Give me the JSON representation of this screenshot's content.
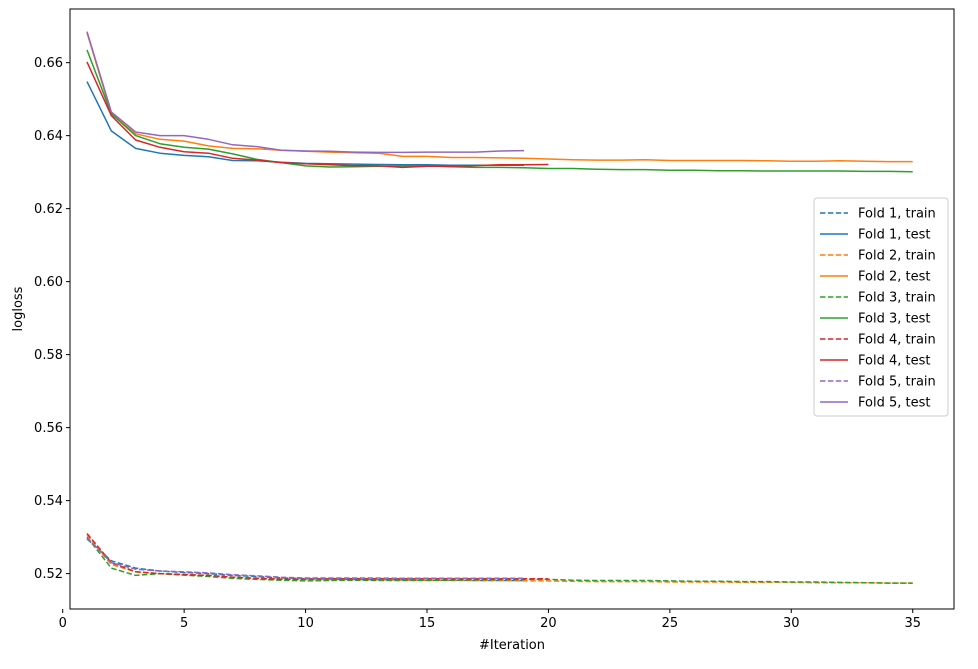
{
  "chart_data": {
    "type": "line",
    "title": "",
    "xlabel": "#Iteration",
    "ylabel": "logloss",
    "xlim": [
      0.3,
      36.7
    ],
    "ylim": [
      0.5103,
      0.6747
    ],
    "x_ticks": [
      0,
      5,
      10,
      15,
      20,
      25,
      30,
      35
    ],
    "y_ticks": [
      0.52,
      0.54,
      0.56,
      0.58,
      0.6,
      0.62,
      0.64,
      0.66
    ],
    "x_tick_labels": [
      "0",
      "5",
      "10",
      "15",
      "20",
      "25",
      "30",
      "35"
    ],
    "y_tick_labels": [
      "0.52",
      "0.54",
      "0.56",
      "0.58",
      "0.60",
      "0.62",
      "0.64",
      "0.66"
    ],
    "grid": false,
    "legend_position": "center-right",
    "series": [
      {
        "name": "Fold 1, train",
        "color": "#1f77b4",
        "dashed": true,
        "x": [
          1,
          2,
          3,
          4,
          5,
          6,
          7,
          8,
          9,
          10,
          11,
          12,
          13,
          14,
          15,
          16,
          17,
          18,
          19
        ],
        "y": [
          0.5295,
          0.5235,
          0.5215,
          0.5207,
          0.5203,
          0.52,
          0.5195,
          0.5192,
          0.5188,
          0.5186,
          0.5185,
          0.5184,
          0.5183,
          0.5183,
          0.5182,
          0.5182,
          0.5181,
          0.5181,
          0.5181
        ]
      },
      {
        "name": "Fold 1, test",
        "color": "#1f77b4",
        "dashed": false,
        "x": [
          1,
          2,
          3,
          4,
          5,
          6,
          7,
          8,
          9,
          10,
          11,
          12,
          13,
          14,
          15,
          16,
          17,
          18,
          19
        ],
        "y": [
          0.6548,
          0.6413,
          0.6365,
          0.6352,
          0.6346,
          0.6342,
          0.6332,
          0.6331,
          0.6327,
          0.6324,
          0.6323,
          0.6322,
          0.6321,
          0.632,
          0.632,
          0.6319,
          0.6319,
          0.6319,
          0.6319
        ]
      },
      {
        "name": "Fold 2, train",
        "color": "#ff7f0e",
        "dashed": true,
        "x": [
          1,
          2,
          3,
          4,
          5,
          6,
          7,
          8,
          9,
          10,
          11,
          12,
          13,
          14,
          15,
          16,
          17,
          18,
          19,
          20,
          21,
          22,
          23,
          24,
          25,
          26,
          27,
          28,
          29,
          30,
          31,
          32,
          33,
          34,
          35
        ],
        "y": [
          0.5305,
          0.5225,
          0.5205,
          0.52,
          0.5198,
          0.5195,
          0.519,
          0.5187,
          0.5185,
          0.5183,
          0.5183,
          0.5183,
          0.5183,
          0.5182,
          0.5182,
          0.5181,
          0.5181,
          0.5181,
          0.518,
          0.518,
          0.5179,
          0.5178,
          0.5178,
          0.5178,
          0.5177,
          0.5177,
          0.5177,
          0.5176,
          0.5176,
          0.5176,
          0.5175,
          0.5175,
          0.5175,
          0.5174,
          0.5174
        ]
      },
      {
        "name": "Fold 2, test",
        "color": "#ff7f0e",
        "dashed": false,
        "x": [
          1,
          2,
          3,
          4,
          5,
          6,
          7,
          8,
          9,
          10,
          11,
          12,
          13,
          14,
          15,
          16,
          17,
          18,
          19,
          20,
          21,
          22,
          23,
          24,
          25,
          26,
          27,
          28,
          29,
          30,
          31,
          32,
          33,
          34,
          35
        ],
        "y": [
          0.6682,
          0.646,
          0.6405,
          0.639,
          0.6385,
          0.6372,
          0.6365,
          0.6364,
          0.636,
          0.6357,
          0.6355,
          0.6353,
          0.6352,
          0.6343,
          0.6343,
          0.634,
          0.634,
          0.6339,
          0.6338,
          0.6336,
          0.6334,
          0.6333,
          0.6333,
          0.6334,
          0.6332,
          0.6332,
          0.6332,
          0.6332,
          0.6331,
          0.633,
          0.633,
          0.6331,
          0.633,
          0.6329,
          0.6329
        ]
      },
      {
        "name": "Fold 3, train",
        "color": "#2ca02c",
        "dashed": true,
        "x": [
          1,
          2,
          3,
          4,
          5,
          6,
          7,
          8,
          9,
          10,
          11,
          12,
          13,
          14,
          15,
          16,
          17,
          18,
          19,
          20,
          21,
          22,
          23,
          24,
          25,
          26,
          27,
          28,
          29,
          30,
          31,
          32,
          33,
          34,
          35
        ],
        "y": [
          0.53,
          0.5215,
          0.5195,
          0.52,
          0.5196,
          0.5192,
          0.5187,
          0.5184,
          0.5182,
          0.518,
          0.5181,
          0.5182,
          0.5181,
          0.5181,
          0.5181,
          0.5182,
          0.5183,
          0.5183,
          0.5184,
          0.5184,
          0.5182,
          0.5181,
          0.5181,
          0.5181,
          0.518,
          0.5179,
          0.5179,
          0.5178,
          0.5178,
          0.5177,
          0.5177,
          0.5176,
          0.5175,
          0.5174,
          0.5174
        ]
      },
      {
        "name": "Fold 3, test",
        "color": "#2ca02c",
        "dashed": false,
        "x": [
          1,
          2,
          3,
          4,
          5,
          6,
          7,
          8,
          9,
          10,
          11,
          12,
          13,
          14,
          15,
          16,
          17,
          18,
          19,
          20,
          21,
          22,
          23,
          24,
          25,
          26,
          27,
          28,
          29,
          30,
          31,
          32,
          33,
          34,
          35
        ],
        "y": [
          0.6635,
          0.646,
          0.64,
          0.6378,
          0.6368,
          0.6363,
          0.635,
          0.6335,
          0.6326,
          0.6317,
          0.6314,
          0.6315,
          0.6316,
          0.6317,
          0.6317,
          0.6315,
          0.6313,
          0.6313,
          0.6312,
          0.631,
          0.631,
          0.6308,
          0.6307,
          0.6307,
          0.6305,
          0.6305,
          0.6304,
          0.6304,
          0.6303,
          0.6303,
          0.6303,
          0.6303,
          0.6302,
          0.6302,
          0.6301
        ]
      },
      {
        "name": "Fold 4, train",
        "color": "#d62728",
        "dashed": true,
        "x": [
          1,
          2,
          3,
          4,
          5,
          6,
          7,
          8,
          9,
          10,
          11,
          12,
          13,
          14,
          15,
          16,
          17,
          18,
          19,
          20
        ],
        "y": [
          0.531,
          0.523,
          0.5205,
          0.52,
          0.5197,
          0.5195,
          0.519,
          0.5187,
          0.5185,
          0.5185,
          0.5186,
          0.5186,
          0.5186,
          0.5186,
          0.5186,
          0.5186,
          0.5186,
          0.5186,
          0.5186,
          0.5186
        ]
      },
      {
        "name": "Fold 4, test",
        "color": "#d62728",
        "dashed": false,
        "x": [
          1,
          2,
          3,
          4,
          5,
          6,
          7,
          8,
          9,
          10,
          11,
          12,
          13,
          14,
          15,
          16,
          17,
          18,
          19,
          20
        ],
        "y": [
          0.6602,
          0.6455,
          0.6388,
          0.6368,
          0.6356,
          0.6352,
          0.6338,
          0.6333,
          0.6326,
          0.6323,
          0.632,
          0.6318,
          0.6317,
          0.6313,
          0.6316,
          0.6316,
          0.6318,
          0.632,
          0.632,
          0.6321
        ]
      },
      {
        "name": "Fold 5, train",
        "color": "#9467bd",
        "dashed": true,
        "x": [
          1,
          2,
          3,
          4,
          5,
          6,
          7,
          8,
          9,
          10,
          11,
          12,
          13,
          14,
          15,
          16,
          17,
          18,
          19
        ],
        "y": [
          0.5298,
          0.523,
          0.5212,
          0.5207,
          0.5205,
          0.5202,
          0.5197,
          0.5194,
          0.519,
          0.5188,
          0.5188,
          0.5188,
          0.5188,
          0.5187,
          0.5187,
          0.5187,
          0.5187,
          0.5187,
          0.5187
        ]
      },
      {
        "name": "Fold 5, test",
        "color": "#9467bd",
        "dashed": false,
        "x": [
          1,
          2,
          3,
          4,
          5,
          6,
          7,
          8,
          9,
          10,
          11,
          12,
          13,
          14,
          15,
          16,
          17,
          18,
          19
        ],
        "y": [
          0.6685,
          0.6465,
          0.641,
          0.64,
          0.64,
          0.639,
          0.6375,
          0.637,
          0.636,
          0.6358,
          0.6357,
          0.6355,
          0.6354,
          0.6354,
          0.6355,
          0.6355,
          0.6355,
          0.6358,
          0.6359
        ]
      }
    ]
  }
}
